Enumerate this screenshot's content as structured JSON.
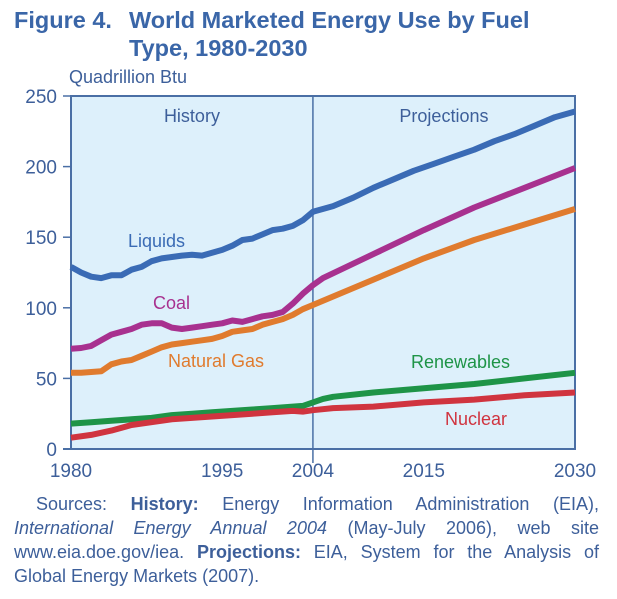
{
  "figure": {
    "number_label": "Figure 4.",
    "title_line1": "World Marketed Energy Use by Fuel",
    "title_line2": "Type, 1980-2030"
  },
  "chart_data": {
    "type": "line",
    "title": "Figure 4. World Marketed Energy Use by Fuel Type, 1980-2030",
    "ylabel": "Quadrillion Btu",
    "xlabel": "",
    "xlim": [
      1980,
      2030
    ],
    "ylim": [
      0,
      250
    ],
    "xticks": [
      1980,
      1995,
      2004,
      2015,
      2030
    ],
    "yticks": [
      0,
      50,
      100,
      150,
      200,
      250
    ],
    "grid": false,
    "legend": "inline labels",
    "regions": [
      {
        "label": "History",
        "from": 1980,
        "to": 2004
      },
      {
        "label": "Projections",
        "from": 2004,
        "to": 2030
      }
    ],
    "divider_year": 2004,
    "colors": {
      "background": "#DDF0FB",
      "axis": "#4A6FA5",
      "text": "#3D5F9A"
    },
    "series": [
      {
        "name": "Liquids",
        "color": "#3A6BB5",
        "x": [
          1980,
          1981,
          1982,
          1983,
          1984,
          1985,
          1986,
          1987,
          1988,
          1989,
          1990,
          1991,
          1992,
          1993,
          1994,
          1995,
          1996,
          1997,
          1998,
          1999,
          2000,
          2001,
          2002,
          2003,
          2004,
          2006,
          2008,
          2010,
          2012,
          2014,
          2016,
          2018,
          2020,
          2022,
          2024,
          2026,
          2028,
          2030
        ],
        "values": [
          129,
          125,
          122,
          121,
          123,
          123,
          127,
          129,
          133,
          135,
          136,
          137,
          137.5,
          137,
          139,
          141,
          144,
          148,
          149,
          152,
          155,
          156,
          158,
          162,
          168,
          172,
          178,
          185,
          191,
          197,
          202,
          207,
          212,
          218,
          223,
          229,
          235,
          239
        ]
      },
      {
        "name": "Coal",
        "color": "#A8318F",
        "x": [
          1980,
          1981,
          1982,
          1983,
          1984,
          1985,
          1986,
          1987,
          1988,
          1989,
          1990,
          1991,
          1992,
          1993,
          1994,
          1995,
          1996,
          1997,
          1998,
          1999,
          2000,
          2001,
          2002,
          2003,
          2004,
          2005,
          2010,
          2015,
          2020,
          2025,
          2030
        ],
        "values": [
          71,
          71.5,
          73,
          77,
          81,
          83,
          85,
          88,
          89,
          89,
          86,
          85,
          86,
          87,
          88,
          89,
          91,
          90,
          92,
          94,
          95,
          97,
          103,
          110,
          116,
          121,
          138,
          155,
          171,
          185,
          199
        ]
      },
      {
        "name": "Natural Gas",
        "color": "#E07B2E",
        "x": [
          1980,
          1981,
          1982,
          1983,
          1984,
          1985,
          1986,
          1987,
          1988,
          1989,
          1990,
          1991,
          1992,
          1993,
          1994,
          1995,
          1996,
          1997,
          1998,
          1999,
          2000,
          2001,
          2002,
          2003,
          2004,
          2005,
          2010,
          2015,
          2020,
          2025,
          2030
        ],
        "values": [
          54,
          54,
          54.5,
          55,
          60,
          62,
          63,
          66,
          69,
          72,
          74,
          75,
          76,
          77,
          78,
          80,
          83,
          84,
          85,
          88,
          90,
          92,
          95,
          99,
          102,
          105,
          120,
          135,
          148,
          159,
          170
        ]
      },
      {
        "name": "Renewables",
        "color": "#1E9447",
        "x": [
          1980,
          1982,
          1984,
          1986,
          1988,
          1990,
          1992,
          1994,
          1996,
          1998,
          2000,
          2002,
          2003,
          2004,
          2005,
          2006,
          2010,
          2015,
          2020,
          2025,
          2030
        ],
        "values": [
          18,
          19,
          20,
          21,
          22,
          24,
          25,
          26,
          27,
          28,
          29,
          30,
          30.5,
          33,
          35.5,
          37,
          40,
          43,
          46,
          50,
          54
        ]
      },
      {
        "name": "Nuclear",
        "color": "#D0343F",
        "x": [
          1980,
          1982,
          1984,
          1986,
          1988,
          1990,
          1992,
          1994,
          1996,
          1998,
          2000,
          2002,
          2003,
          2004,
          2006,
          2010,
          2015,
          2020,
          2025,
          2030
        ],
        "values": [
          8,
          10,
          13,
          17,
          19,
          21,
          22,
          23,
          24,
          25,
          26,
          27,
          26.5,
          27.5,
          29,
          30,
          33,
          35,
          38,
          40
        ]
      }
    ]
  },
  "footer": {
    "sources_label": "Sources:",
    "history_label": "History:",
    "history_text": "Energy Information Administration (EIA),",
    "publication_title": "International Energy Annual 2004",
    "publication_rest": "(May-July 2006), web site www.eia.doe.gov/iea.",
    "projections_label": "Projections:",
    "projections_text": "EIA, System for the Analysis of Global Energy Markets (2007)."
  }
}
